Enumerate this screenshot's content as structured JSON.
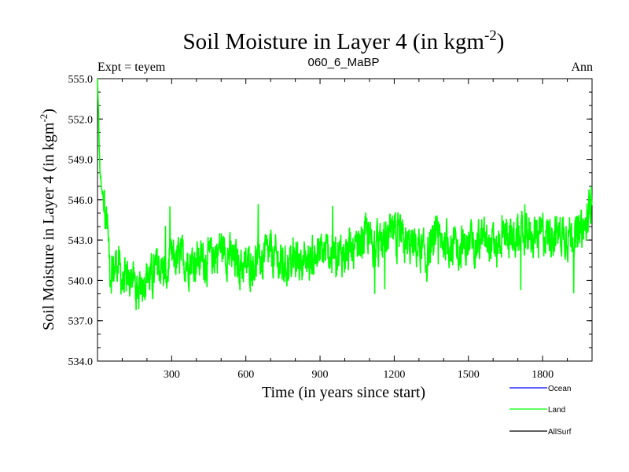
{
  "chart_data": {
    "type": "line",
    "title_main": "Soil Moisture in Layer 4 (in kgm",
    "title_sup": "-2",
    "title_close": ")",
    "subtitle_left": "Expt = teyem",
    "subtitle_center": "060_6_MaBP",
    "subtitle_right": "Ann",
    "xlabel": "Time (in years since start)",
    "ylabel_main": "Soil Moisture in Layer 4 (in kgm",
    "ylabel_sup": "-2",
    "ylabel_close": ")",
    "xlim": [
      0,
      2000
    ],
    "ylim": [
      534.0,
      555.0
    ],
    "x_ticks": [
      300,
      600,
      900,
      1200,
      1500,
      1800
    ],
    "x_tick_labels": [
      "300",
      "600",
      "900",
      "1200",
      "1500",
      "1800"
    ],
    "y_ticks": [
      534.0,
      537.0,
      540.0,
      543.0,
      546.0,
      549.0,
      552.0,
      555.0
    ],
    "y_tick_labels": [
      "534.0",
      "537.0",
      "540.0",
      "543.0",
      "546.0",
      "549.0",
      "552.0",
      "555.0"
    ],
    "legend": [
      {
        "name": "Ocean",
        "color": "#0000ff"
      },
      {
        "name": "Land",
        "color": "#00ff00"
      },
      {
        "name": "AllSurf",
        "color": "#000000"
      }
    ],
    "series": [
      {
        "name": "Land",
        "color": "#00ff00",
        "x": [
          0,
          10,
          20,
          30,
          40,
          50,
          60,
          80,
          100,
          120,
          140,
          160,
          180,
          200,
          220,
          240,
          260,
          280,
          300,
          350,
          400,
          450,
          500,
          550,
          600,
          650,
          700,
          750,
          800,
          850,
          900,
          950,
          1000,
          1050,
          1080,
          1100,
          1150,
          1200,
          1250,
          1300,
          1330,
          1350,
          1400,
          1450,
          1500,
          1550,
          1600,
          1650,
          1700,
          1750,
          1800,
          1850,
          1900,
          1950,
          1980,
          2000
        ],
        "y": [
          555.0,
          548.0,
          546.5,
          546.0,
          544.0,
          541.0,
          540.5,
          541.5,
          540.0,
          539.5,
          540.5,
          539.0,
          540.0,
          540.5,
          540.0,
          541.0,
          541.0,
          540.5,
          541.5,
          541.5,
          541.5,
          541.5,
          542.5,
          541.5,
          541.0,
          541.5,
          542.0,
          541.0,
          541.5,
          541.5,
          542.0,
          542.0,
          542.0,
          542.0,
          543.5,
          543.0,
          542.5,
          543.5,
          542.5,
          542.5,
          541.5,
          542.5,
          543.0,
          542.5,
          542.5,
          543.0,
          542.5,
          543.5,
          543.0,
          543.5,
          543.5,
          543.5,
          543.5,
          543.5,
          544.0,
          547.0
        ]
      }
    ]
  }
}
